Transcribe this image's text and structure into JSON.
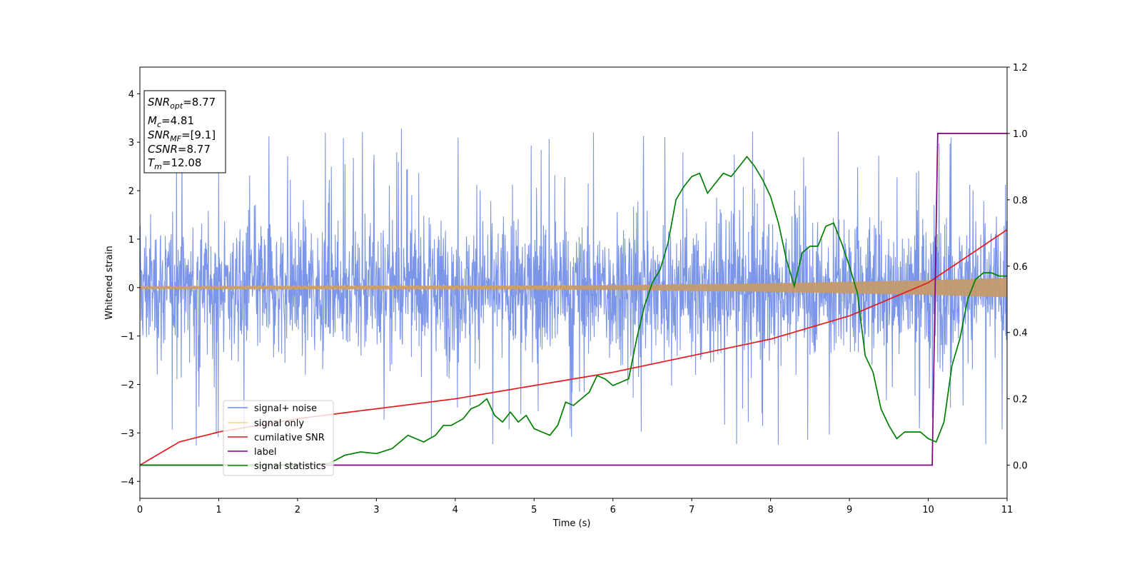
{
  "chart_data": {
    "type": "line",
    "xlabel": "Time (s)",
    "ylabel": "Whitened strain",
    "xlim": [
      0,
      11
    ],
    "ylim_left": [
      -4.35,
      4.55
    ],
    "ylim_right": [
      -0.1,
      1.2
    ],
    "x_ticks": [
      "0",
      "1",
      "2",
      "3",
      "4",
      "5",
      "6",
      "7",
      "8",
      "9",
      "10",
      "11"
    ],
    "y_ticks_left": [
      "−4",
      "−3",
      "−2",
      "−1",
      "0",
      "1",
      "2",
      "3",
      "4"
    ],
    "y_ticks_right": [
      "0.0",
      "0.2",
      "0.4",
      "0.6",
      "0.8",
      "1.0",
      "1.2"
    ],
    "annotation": {
      "snr_opt": {
        "name": "SNR",
        "sub": "opt",
        "value": "=8.77"
      },
      "mc": {
        "name": "M",
        "sub": "c",
        "value": "=4.81"
      },
      "snr_mf": {
        "name": "SNR",
        "sub": "MF",
        "value": "=[9.1]"
      },
      "csnr": {
        "name": "CSNR",
        "sub": "",
        "value": "=8.77"
      },
      "tm": {
        "name": "T",
        "sub": "m",
        "value": "=12.08"
      }
    },
    "legend_position": "lower-left",
    "colors": {
      "signal_noise": "#6d8ae6",
      "signal_only": "#f5b041",
      "cumulative_snr": "#e41a1c",
      "label": "#800080",
      "signal_statistics": "#008000"
    },
    "series": [
      {
        "name": "signal+ noise",
        "axis": "left",
        "description_values": {
          "mean": 0.0,
          "typical_range": [
            -1.5,
            2.0
          ],
          "max": 4.15,
          "min": -3.35
        }
      },
      {
        "name": "signal only",
        "axis": "left",
        "envelope": {
          "x": [
            0,
            5,
            6,
            7,
            8,
            9,
            10,
            11
          ],
          "amplitude": [
            0.03,
            0.04,
            0.05,
            0.07,
            0.09,
            0.12,
            0.15,
            0.2
          ]
        }
      },
      {
        "name": "cumilative SNR",
        "axis": "right",
        "x": [
          0,
          0.5,
          1,
          2,
          3,
          4,
          5,
          6,
          7,
          8,
          9,
          10,
          11
        ],
        "y": [
          0.0,
          0.07,
          0.1,
          0.14,
          0.17,
          0.2,
          0.24,
          0.28,
          0.33,
          0.38,
          0.45,
          0.55,
          0.71
        ]
      },
      {
        "name": "label",
        "axis": "right",
        "x": [
          0,
          10.05,
          10.12,
          11
        ],
        "y": [
          0,
          0,
          1,
          1
        ]
      },
      {
        "name": "signal statistics",
        "axis": "right",
        "x": [
          0,
          1.0,
          2.0,
          2.4,
          2.6,
          2.8,
          3.0,
          3.2,
          3.4,
          3.6,
          3.75,
          3.85,
          3.95,
          4.1,
          4.2,
          4.3,
          4.4,
          4.5,
          4.6,
          4.7,
          4.8,
          4.9,
          5.0,
          5.1,
          5.2,
          5.3,
          5.4,
          5.5,
          5.6,
          5.7,
          5.8,
          5.9,
          6.0,
          6.1,
          6.2,
          6.3,
          6.4,
          6.5,
          6.6,
          6.7,
          6.8,
          6.9,
          7.0,
          7.1,
          7.2,
          7.3,
          7.4,
          7.5,
          7.6,
          7.7,
          7.8,
          7.9,
          8.0,
          8.1,
          8.2,
          8.3,
          8.4,
          8.5,
          8.6,
          8.7,
          8.8,
          8.9,
          9.0,
          9.1,
          9.2,
          9.3,
          9.4,
          9.5,
          9.6,
          9.7,
          9.8,
          9.9,
          10.0,
          10.1,
          10.2,
          10.3,
          10.4,
          10.5,
          10.6,
          10.7,
          10.8,
          10.9,
          11.0
        ],
        "y": [
          0.0,
          0.0,
          0.0,
          0.005,
          0.03,
          0.04,
          0.035,
          0.05,
          0.09,
          0.07,
          0.09,
          0.12,
          0.12,
          0.14,
          0.17,
          0.18,
          0.2,
          0.15,
          0.13,
          0.16,
          0.13,
          0.15,
          0.11,
          0.1,
          0.09,
          0.12,
          0.19,
          0.18,
          0.2,
          0.22,
          0.27,
          0.26,
          0.24,
          0.25,
          0.26,
          0.38,
          0.48,
          0.55,
          0.59,
          0.67,
          0.8,
          0.84,
          0.87,
          0.88,
          0.82,
          0.85,
          0.88,
          0.87,
          0.9,
          0.93,
          0.9,
          0.86,
          0.81,
          0.73,
          0.62,
          0.54,
          0.64,
          0.66,
          0.66,
          0.72,
          0.73,
          0.67,
          0.6,
          0.52,
          0.33,
          0.28,
          0.17,
          0.12,
          0.08,
          0.1,
          0.1,
          0.1,
          0.08,
          0.07,
          0.13,
          0.3,
          0.38,
          0.5,
          0.56,
          0.58,
          0.58,
          0.57,
          0.57
        ]
      }
    ]
  }
}
